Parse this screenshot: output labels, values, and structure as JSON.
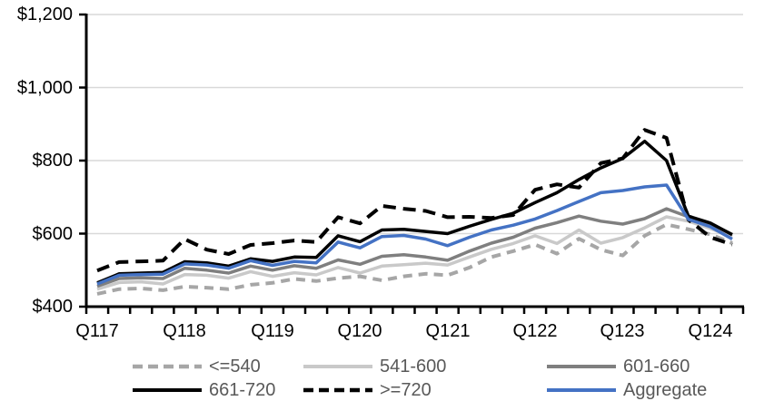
{
  "chart_data": {
    "type": "line",
    "title": "",
    "xlabel": "",
    "ylabel": "",
    "ylim": [
      400,
      1200
    ],
    "y_ticks": [
      400,
      600,
      800,
      1000,
      1200
    ],
    "y_tick_labels": [
      "$400",
      "$600",
      "$800",
      "$1,000",
      "$1,200"
    ],
    "x_tick_labels": [
      "Q117",
      "Q118",
      "Q119",
      "Q120",
      "Q121",
      "Q122",
      "Q123",
      "Q124"
    ],
    "categories": [
      "Q117",
      "Q217",
      "Q317",
      "Q417",
      "Q118",
      "Q218",
      "Q318",
      "Q418",
      "Q119",
      "Q219",
      "Q319",
      "Q419",
      "Q120",
      "Q220",
      "Q320",
      "Q420",
      "Q121",
      "Q221",
      "Q321",
      "Q421",
      "Q122",
      "Q222",
      "Q322",
      "Q422",
      "Q123",
      "Q223",
      "Q323",
      "Q423",
      "Q124",
      "Q224"
    ],
    "grid": "horizontal",
    "legend_position": "bottom",
    "colors": {
      "axis": "#000000",
      "gridline": "#d9d9d9",
      "legend_text": "#595959",
      "aggregate_blue": "#4472c4",
      "light_gray": "#c9c9c9",
      "mid_gray": "#a6a6a6",
      "dark_gray": "#7f7f7f",
      "black": "#000000"
    },
    "series": [
      {
        "name": "<=540",
        "color": "#a6a6a6",
        "line_style": "dashed",
        "values": [
          435,
          448,
          450,
          445,
          455,
          452,
          448,
          460,
          465,
          476,
          470,
          478,
          483,
          472,
          483,
          490,
          486,
          507,
          536,
          552,
          570,
          545,
          586,
          556,
          540,
          594,
          625,
          612,
          598,
          574
        ]
      },
      {
        "name": "541-600",
        "color": "#c9c9c9",
        "line_style": "solid",
        "values": [
          448,
          466,
          468,
          462,
          488,
          486,
          478,
          496,
          483,
          493,
          487,
          507,
          492,
          511,
          515,
          519,
          514,
          536,
          557,
          573,
          594,
          573,
          610,
          574,
          589,
          616,
          646,
          634,
          614,
          592
        ]
      },
      {
        "name": "601-660",
        "color": "#7f7f7f",
        "line_style": "solid",
        "values": [
          456,
          477,
          479,
          477,
          505,
          500,
          492,
          511,
          500,
          512,
          505,
          528,
          516,
          538,
          542,
          536,
          527,
          552,
          574,
          590,
          615,
          630,
          648,
          634,
          626,
          641,
          668,
          646,
          627,
          598
        ]
      },
      {
        "name": "661-720",
        "color": "#000000",
        "line_style": "solid",
        "values": [
          465,
          490,
          492,
          494,
          523,
          520,
          511,
          531,
          524,
          536,
          535,
          594,
          578,
          610,
          612,
          606,
          600,
          620,
          639,
          656,
          685,
          712,
          748,
          780,
          806,
          853,
          800,
          648,
          629,
          597
        ]
      },
      {
        "name": ">=720",
        "color": "#000000",
        "line_style": "dashed",
        "values": [
          499,
          522,
          524,
          526,
          585,
          556,
          544,
          569,
          574,
          581,
          577,
          645,
          628,
          676,
          668,
          662,
          645,
          646,
          643,
          651,
          720,
          735,
          726,
          793,
          806,
          884,
          862,
          638,
          590,
          570
        ]
      },
      {
        "name": "Aggregate",
        "color": "#4472c4",
        "line_style": "solid",
        "values": [
          462,
          486,
          488,
          489,
          517,
          514,
          505,
          526,
          513,
          524,
          520,
          577,
          561,
          592,
          595,
          585,
          567,
          590,
          610,
          623,
          640,
          663,
          688,
          712,
          718,
          728,
          733,
          639,
          619,
          585
        ]
      }
    ]
  }
}
